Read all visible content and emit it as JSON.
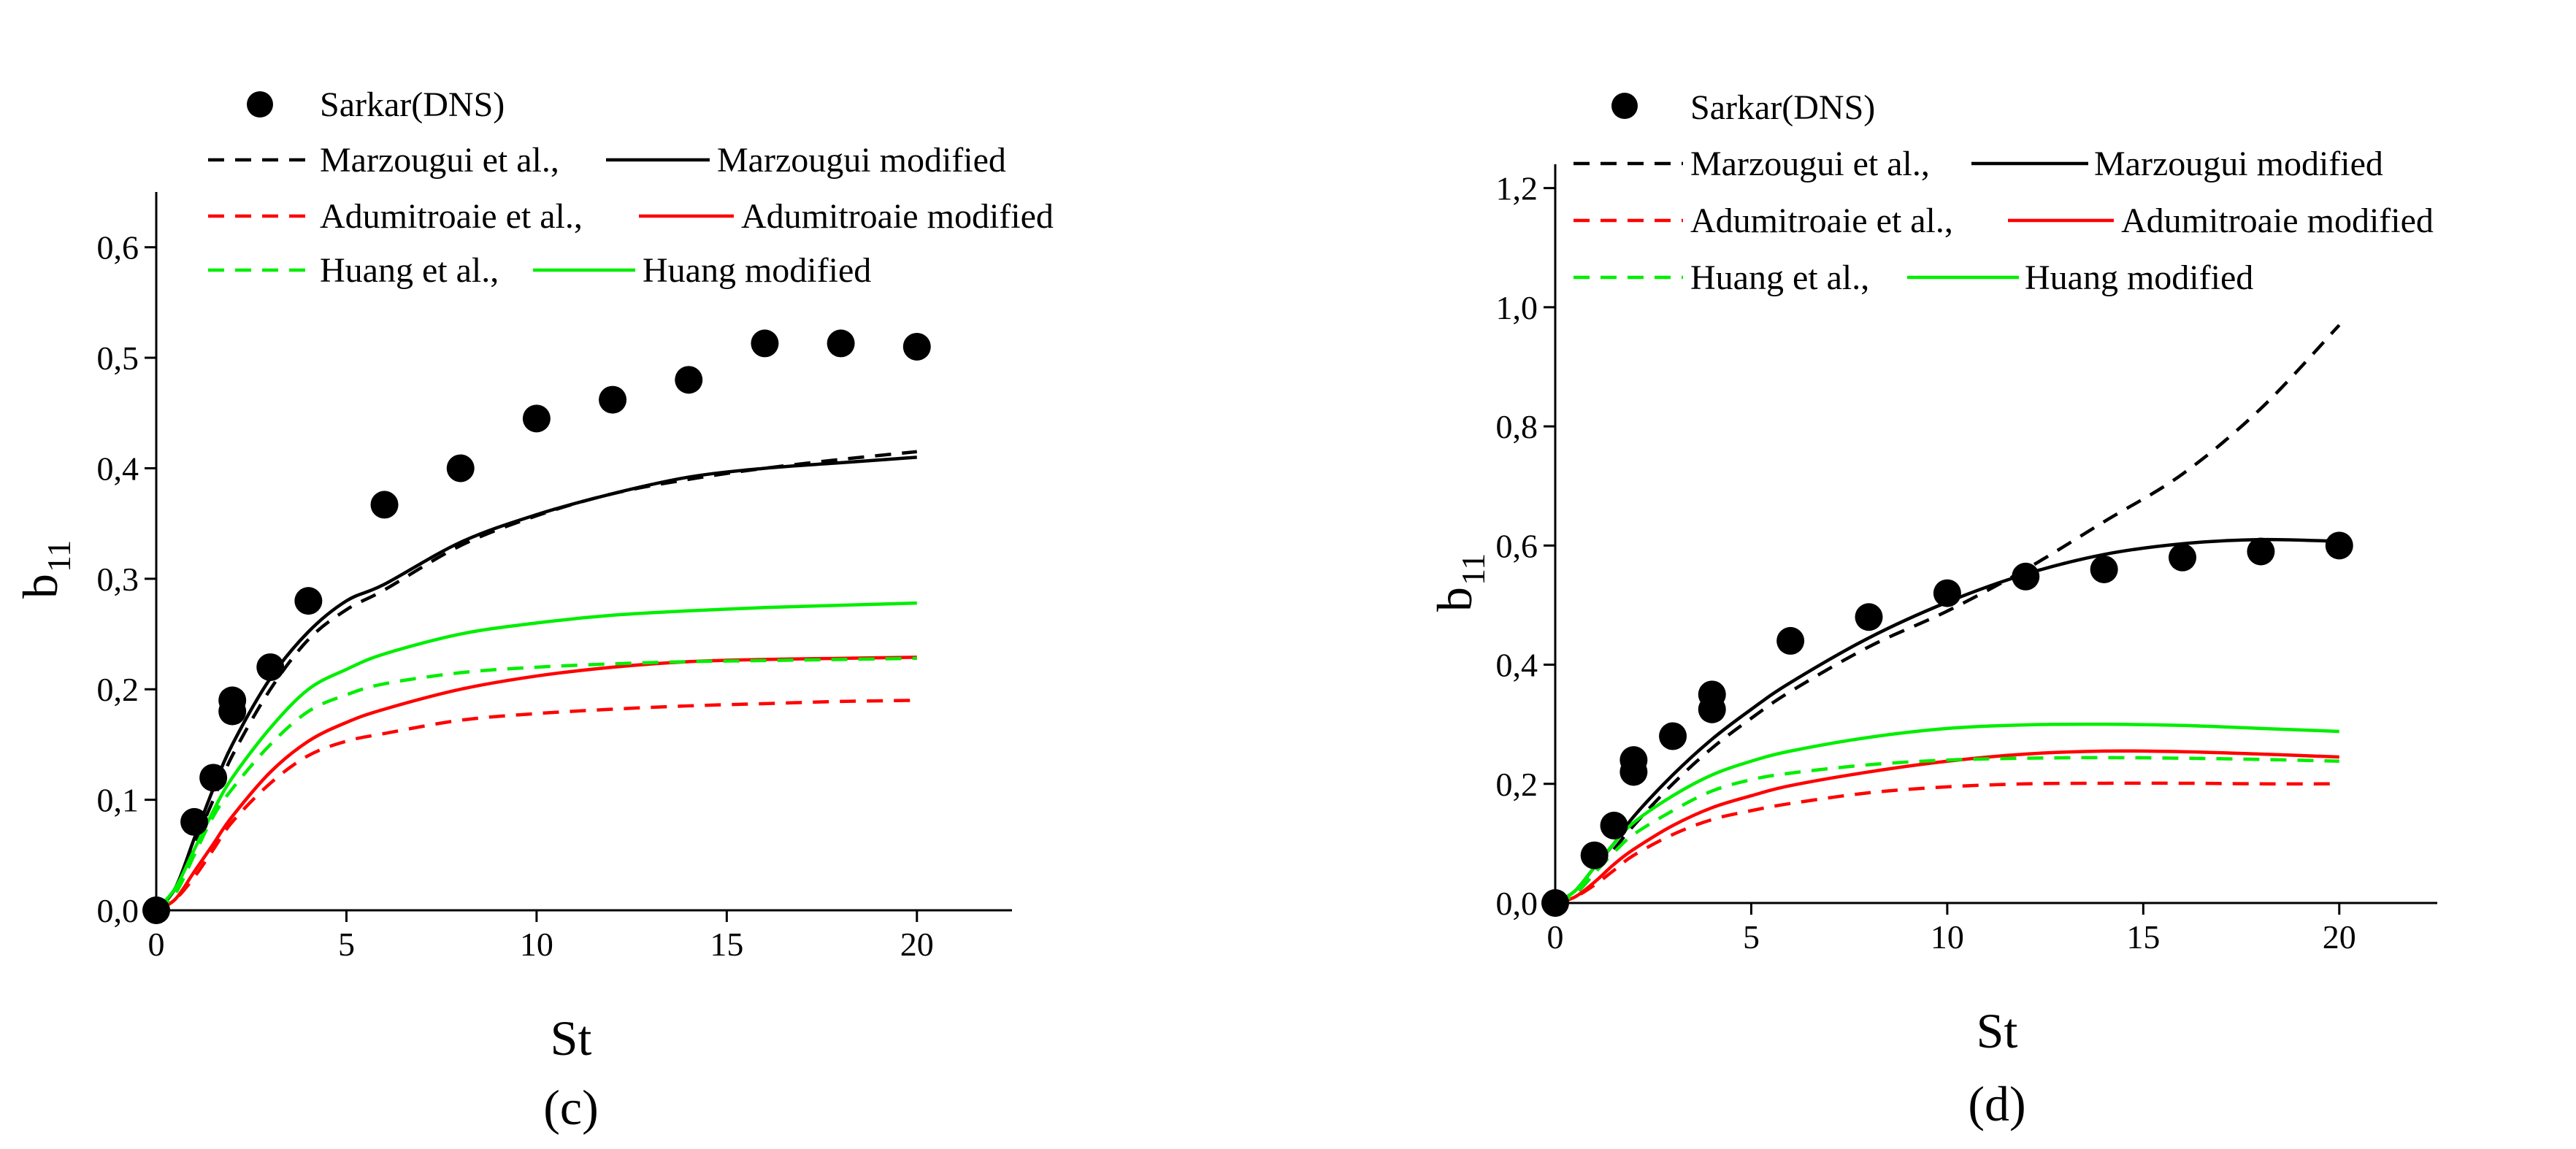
{
  "chart_data": [
    {
      "id": "c",
      "type": "line",
      "caption": "(c)",
      "xlabel": "St",
      "ylabel": "b",
      "ylabel_sub": "11",
      "xlim": [
        0,
        22.5
      ],
      "ylim": [
        0,
        0.65
      ],
      "xticks": [
        0,
        5,
        10,
        15,
        20
      ],
      "xtick_labels": [
        "0",
        "5",
        "10",
        "15",
        "20"
      ],
      "yticks": [
        0,
        0.1,
        0.2,
        0.3,
        0.4,
        0.5,
        0.6
      ],
      "ytick_labels": [
        "0,0",
        "0,1",
        "0,2",
        "0,3",
        "0,4",
        "0,5",
        "0,6"
      ],
      "grid": false,
      "legend_position": "top-left",
      "scatter": {
        "name": "Sarkar(DNS)",
        "color": "#000000",
        "x": [
          0,
          1,
          1.5,
          2,
          2,
          3,
          4,
          6,
          8,
          10,
          12,
          14,
          16,
          18,
          20
        ],
        "y": [
          0.0,
          0.08,
          0.12,
          0.18,
          0.19,
          0.22,
          0.28,
          0.367,
          0.4,
          0.445,
          0.462,
          0.48,
          0.513,
          0.513,
          0.51
        ]
      },
      "series": [
        {
          "name": "Marzougui et al.,",
          "color": "#000000",
          "dash": true,
          "x": [
            0,
            0.5,
            1,
            1.5,
            2,
            3,
            4,
            5,
            6,
            8,
            10,
            12,
            14,
            16,
            18,
            20
          ],
          "y": [
            0,
            0.02,
            0.06,
            0.1,
            0.14,
            0.2,
            0.245,
            0.272,
            0.29,
            0.33,
            0.357,
            0.377,
            0.39,
            0.4,
            0.408,
            0.415
          ]
        },
        {
          "name": "Marzougui modified",
          "color": "#000000",
          "dash": false,
          "x": [
            0,
            0.5,
            1,
            1.5,
            2,
            3,
            4,
            5,
            6,
            8,
            10,
            12,
            14,
            16,
            18,
            20
          ],
          "y": [
            0,
            0.02,
            0.065,
            0.11,
            0.15,
            0.21,
            0.252,
            0.28,
            0.295,
            0.333,
            0.358,
            0.377,
            0.392,
            0.4,
            0.405,
            0.41
          ]
        },
        {
          "name": "Adumitroaie et al.,",
          "color": "#ff0000",
          "dash": true,
          "x": [
            0,
            0.5,
            1,
            1.5,
            2,
            3,
            4,
            5,
            6,
            8,
            10,
            12,
            14,
            16,
            18,
            20
          ],
          "y": [
            0,
            0.01,
            0.03,
            0.055,
            0.08,
            0.115,
            0.14,
            0.153,
            0.16,
            0.172,
            0.178,
            0.182,
            0.185,
            0.187,
            0.189,
            0.19
          ]
        },
        {
          "name": "Adumitroaie modified",
          "color": "#ff0000",
          "dash": false,
          "x": [
            0,
            0.5,
            1,
            1.5,
            2,
            3,
            4,
            5,
            6,
            8,
            10,
            12,
            14,
            16,
            18,
            20
          ],
          "y": [
            0,
            0.01,
            0.035,
            0.06,
            0.085,
            0.125,
            0.153,
            0.17,
            0.182,
            0.2,
            0.212,
            0.22,
            0.225,
            0.227,
            0.228,
            0.229
          ]
        },
        {
          "name": "Huang et al.,",
          "color": "#00ee00",
          "dash": true,
          "x": [
            0,
            0.5,
            1,
            1.5,
            2,
            3,
            4,
            5,
            6,
            8,
            10,
            12,
            14,
            16,
            18,
            20
          ],
          "y": [
            0,
            0.015,
            0.05,
            0.085,
            0.11,
            0.15,
            0.18,
            0.195,
            0.205,
            0.215,
            0.22,
            0.223,
            0.225,
            0.226,
            0.227,
            0.228
          ]
        },
        {
          "name": "Huang modified",
          "color": "#00ee00",
          "dash": false,
          "x": [
            0,
            0.5,
            1,
            1.5,
            2,
            3,
            4,
            5,
            6,
            8,
            10,
            12,
            14,
            16,
            18,
            20
          ],
          "y": [
            0,
            0.02,
            0.055,
            0.09,
            0.12,
            0.165,
            0.2,
            0.218,
            0.232,
            0.25,
            0.26,
            0.267,
            0.271,
            0.274,
            0.276,
            0.278
          ]
        }
      ]
    },
    {
      "id": "d",
      "type": "line",
      "caption": "(d)",
      "xlabel": "St",
      "ylabel": "b",
      "ylabel_sub": "11",
      "xlim": [
        0,
        22.5
      ],
      "ylim": [
        0,
        1.24
      ],
      "xticks": [
        0,
        5,
        10,
        15,
        20
      ],
      "xtick_labels": [
        "0",
        "5",
        "10",
        "15",
        "20"
      ],
      "yticks": [
        0,
        0.2,
        0.4,
        0.6,
        0.8,
        1.0,
        1.2
      ],
      "ytick_labels": [
        "0,0",
        "0,2",
        "0,4",
        "0,6",
        "0,8",
        "1,0",
        "1,2"
      ],
      "grid": false,
      "legend_position": "top-left",
      "scatter": {
        "name": "Sarkar(DNS)",
        "color": "#000000",
        "x": [
          0,
          1,
          1.5,
          2,
          2,
          3,
          4,
          4,
          6,
          8,
          10,
          12,
          14,
          16,
          18,
          20
        ],
        "y": [
          0.0,
          0.08,
          0.13,
          0.22,
          0.24,
          0.28,
          0.325,
          0.35,
          0.44,
          0.48,
          0.52,
          0.548,
          0.56,
          0.58,
          0.59,
          0.6
        ]
      },
      "series": [
        {
          "name": "Marzougui et al.,",
          "color": "#000000",
          "dash": true,
          "x": [
            0,
            0.5,
            1,
            1.5,
            2,
            3,
            4,
            5,
            6,
            8,
            10,
            12,
            14,
            16,
            18,
            20
          ],
          "y": [
            0,
            0.015,
            0.05,
            0.09,
            0.13,
            0.2,
            0.26,
            0.31,
            0.355,
            0.43,
            0.49,
            0.56,
            0.64,
            0.72,
            0.83,
            0.97
          ]
        },
        {
          "name": "Marzougui modified",
          "color": "#000000",
          "dash": false,
          "x": [
            0,
            0.5,
            1,
            1.5,
            2,
            3,
            4,
            5,
            6,
            8,
            10,
            12,
            14,
            16,
            18,
            20
          ],
          "y": [
            0,
            0.02,
            0.06,
            0.1,
            0.145,
            0.215,
            0.275,
            0.325,
            0.37,
            0.445,
            0.505,
            0.552,
            0.585,
            0.603,
            0.61,
            0.607
          ]
        },
        {
          "name": "Adumitroaie et al.,",
          "color": "#ff0000",
          "dash": true,
          "x": [
            0,
            0.5,
            1,
            1.5,
            2,
            3,
            4,
            5,
            6,
            8,
            10,
            12,
            14,
            16,
            18,
            20
          ],
          "y": [
            0,
            0.01,
            0.03,
            0.055,
            0.08,
            0.115,
            0.14,
            0.155,
            0.167,
            0.185,
            0.195,
            0.2,
            0.201,
            0.201,
            0.2,
            0.2
          ]
        },
        {
          "name": "Adumitroaie modified",
          "color": "#ff0000",
          "dash": false,
          "x": [
            0,
            0.5,
            1,
            1.5,
            2,
            3,
            4,
            5,
            6,
            8,
            10,
            12,
            14,
            16,
            18,
            20
          ],
          "y": [
            0,
            0.01,
            0.035,
            0.065,
            0.09,
            0.13,
            0.16,
            0.18,
            0.197,
            0.22,
            0.238,
            0.25,
            0.255,
            0.254,
            0.25,
            0.245
          ]
        },
        {
          "name": "Huang et al.,",
          "color": "#00ee00",
          "dash": true,
          "x": [
            0,
            0.5,
            1,
            1.5,
            2,
            3,
            4,
            5,
            6,
            8,
            10,
            12,
            14,
            16,
            18,
            20
          ],
          "y": [
            0,
            0.015,
            0.05,
            0.085,
            0.115,
            0.155,
            0.188,
            0.207,
            0.218,
            0.232,
            0.24,
            0.243,
            0.244,
            0.243,
            0.241,
            0.238
          ]
        },
        {
          "name": "Huang modified",
          "color": "#00ee00",
          "dash": false,
          "x": [
            0,
            0.5,
            1,
            1.5,
            2,
            3,
            4,
            5,
            6,
            8,
            10,
            12,
            14,
            16,
            18,
            20
          ],
          "y": [
            0,
            0.02,
            0.06,
            0.1,
            0.135,
            0.18,
            0.215,
            0.238,
            0.255,
            0.278,
            0.293,
            0.299,
            0.3,
            0.298,
            0.293,
            0.288
          ]
        }
      ]
    }
  ]
}
